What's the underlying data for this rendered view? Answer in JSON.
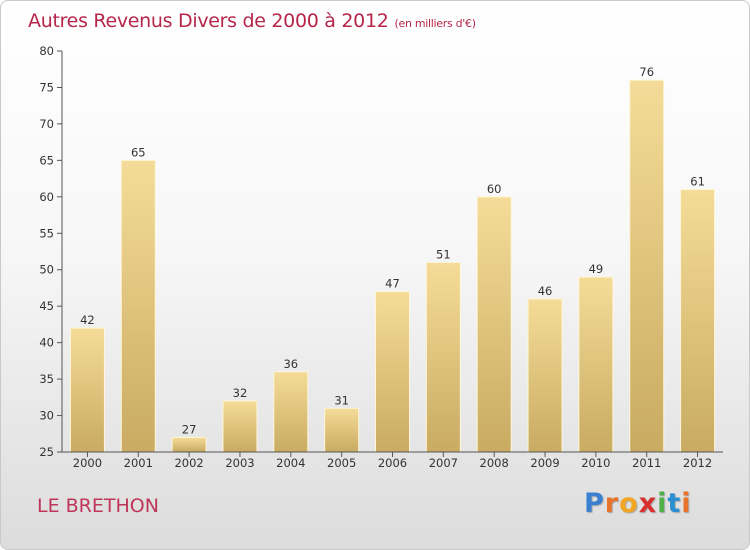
{
  "header": {
    "title": "Autres Revenus Divers de 2000 à 2012",
    "unit": "(en milliers d'€)"
  },
  "footer": {
    "commune": "LE BRETHON",
    "logo_letters": [
      "P",
      "r",
      "o",
      "x",
      "i",
      "t",
      "i"
    ],
    "logo_colors": [
      "#3a7fd0",
      "#e8742b",
      "#f2a623",
      "#d9302f",
      "#4fb04a",
      "#2a8fd0",
      "#e8742b"
    ]
  },
  "colors": {
    "bar_light": "#f4dc98",
    "bar_dark": "#c9ab62",
    "bar_edge": "#fff6d8",
    "axis": "#555555",
    "title": "#b5264a"
  },
  "chart_data": {
    "type": "bar",
    "title": "Autres Revenus Divers de 2000 à 2012",
    "subtitle": "(en milliers d'€)",
    "xlabel": "",
    "ylabel": "",
    "categories": [
      "2000",
      "2001",
      "2002",
      "2003",
      "2004",
      "2005",
      "2006",
      "2007",
      "2008",
      "2009",
      "2010",
      "2011",
      "2012"
    ],
    "values": [
      42,
      65,
      27,
      32,
      36,
      31,
      47,
      51,
      60,
      46,
      49,
      76,
      61
    ],
    "ylim": [
      25,
      80
    ],
    "yticks": [
      25,
      30,
      35,
      40,
      45,
      50,
      55,
      60,
      65,
      70,
      75,
      80
    ],
    "grid": false,
    "data_labels": true
  }
}
